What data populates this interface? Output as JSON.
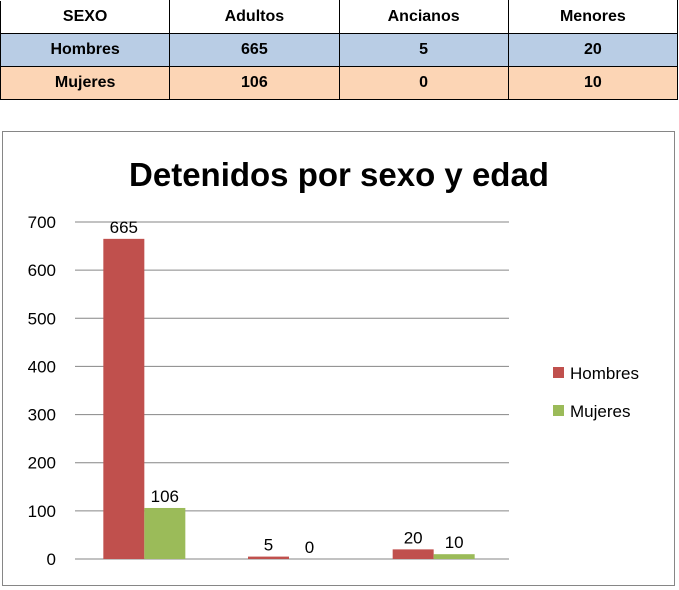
{
  "table": {
    "headers": [
      "SEXO",
      "Adultos",
      "Ancianos",
      "Menores"
    ],
    "rows": [
      [
        "Hombres",
        "665",
        "5",
        "20"
      ],
      [
        "Mujeres",
        "106",
        "0",
        "10"
      ]
    ],
    "row_colors": [
      "#b9cde5",
      "#fcd5b5"
    ]
  },
  "chart_data": {
    "type": "bar",
    "title": "Detenidos por sexo y edad",
    "categories": [
      "Adultos",
      "Ancianos",
      "Menores"
    ],
    "show_category_labels": false,
    "series": [
      {
        "name": "Hombres",
        "values": [
          665,
          5,
          20
        ],
        "color": "#c0504d"
      },
      {
        "name": "Mujeres",
        "values": [
          106,
          0,
          10
        ],
        "color": "#9bbb59"
      }
    ],
    "ylim": [
      0,
      700
    ],
    "yticks": [
      0,
      100,
      200,
      300,
      400,
      500,
      600,
      700
    ],
    "grid": true,
    "legend": "right",
    "data_labels": true
  }
}
